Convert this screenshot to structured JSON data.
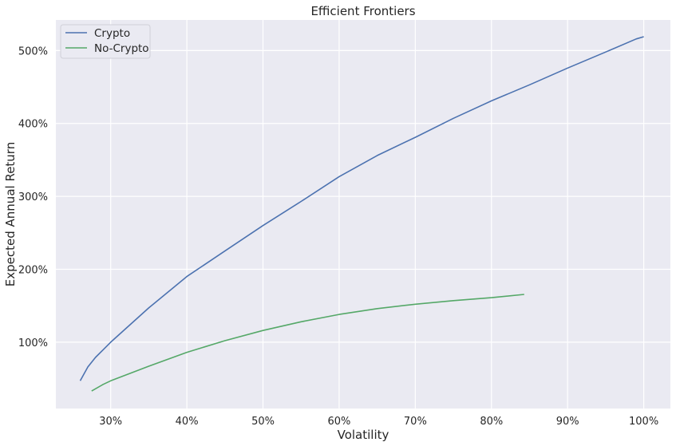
{
  "chart_data": {
    "type": "line",
    "title": "Efficient Frontiers",
    "xlabel": "Volatility",
    "ylabel": "Expected Annual Return",
    "xlim": [
      0.228,
      1.035
    ],
    "ylim": [
      0.09,
      5.42
    ],
    "xticks": [
      0.3,
      0.4,
      0.5,
      0.6,
      0.7,
      0.8,
      0.9,
      1.0
    ],
    "xtick_labels": [
      "30%",
      "40%",
      "50%",
      "60%",
      "70%",
      "80%",
      "90%",
      "100%"
    ],
    "yticks": [
      1.0,
      2.0,
      3.0,
      4.0,
      5.0
    ],
    "ytick_labels": [
      "100%",
      "200%",
      "300%",
      "400%",
      "500%"
    ],
    "grid": true,
    "background": "#eaeaf2",
    "legend_position": "top-left",
    "series": [
      {
        "name": "Crypto",
        "color": "#4c72b0",
        "points": [
          [
            0.26,
            0.47
          ],
          [
            0.27,
            0.66
          ],
          [
            0.28,
            0.79
          ],
          [
            0.3,
            1.0
          ],
          [
            0.35,
            1.47
          ],
          [
            0.4,
            1.9
          ],
          [
            0.45,
            2.25
          ],
          [
            0.5,
            2.6
          ],
          [
            0.55,
            2.93
          ],
          [
            0.6,
            3.27
          ],
          [
            0.65,
            3.56
          ],
          [
            0.7,
            3.81
          ],
          [
            0.75,
            4.07
          ],
          [
            0.8,
            4.31
          ],
          [
            0.85,
            4.53
          ],
          [
            0.9,
            4.76
          ],
          [
            0.95,
            4.98
          ],
          [
            0.99,
            5.16
          ],
          [
            1.0,
            5.19
          ]
        ]
      },
      {
        "name": "No-Crypto",
        "color": "#55a868",
        "points": [
          [
            0.275,
            0.33
          ],
          [
            0.29,
            0.42
          ],
          [
            0.3,
            0.47
          ],
          [
            0.35,
            0.67
          ],
          [
            0.4,
            0.86
          ],
          [
            0.45,
            1.02
          ],
          [
            0.5,
            1.16
          ],
          [
            0.55,
            1.28
          ],
          [
            0.6,
            1.38
          ],
          [
            0.65,
            1.46
          ],
          [
            0.7,
            1.52
          ],
          [
            0.75,
            1.57
          ],
          [
            0.8,
            1.61
          ],
          [
            0.843,
            1.655
          ]
        ]
      }
    ]
  }
}
